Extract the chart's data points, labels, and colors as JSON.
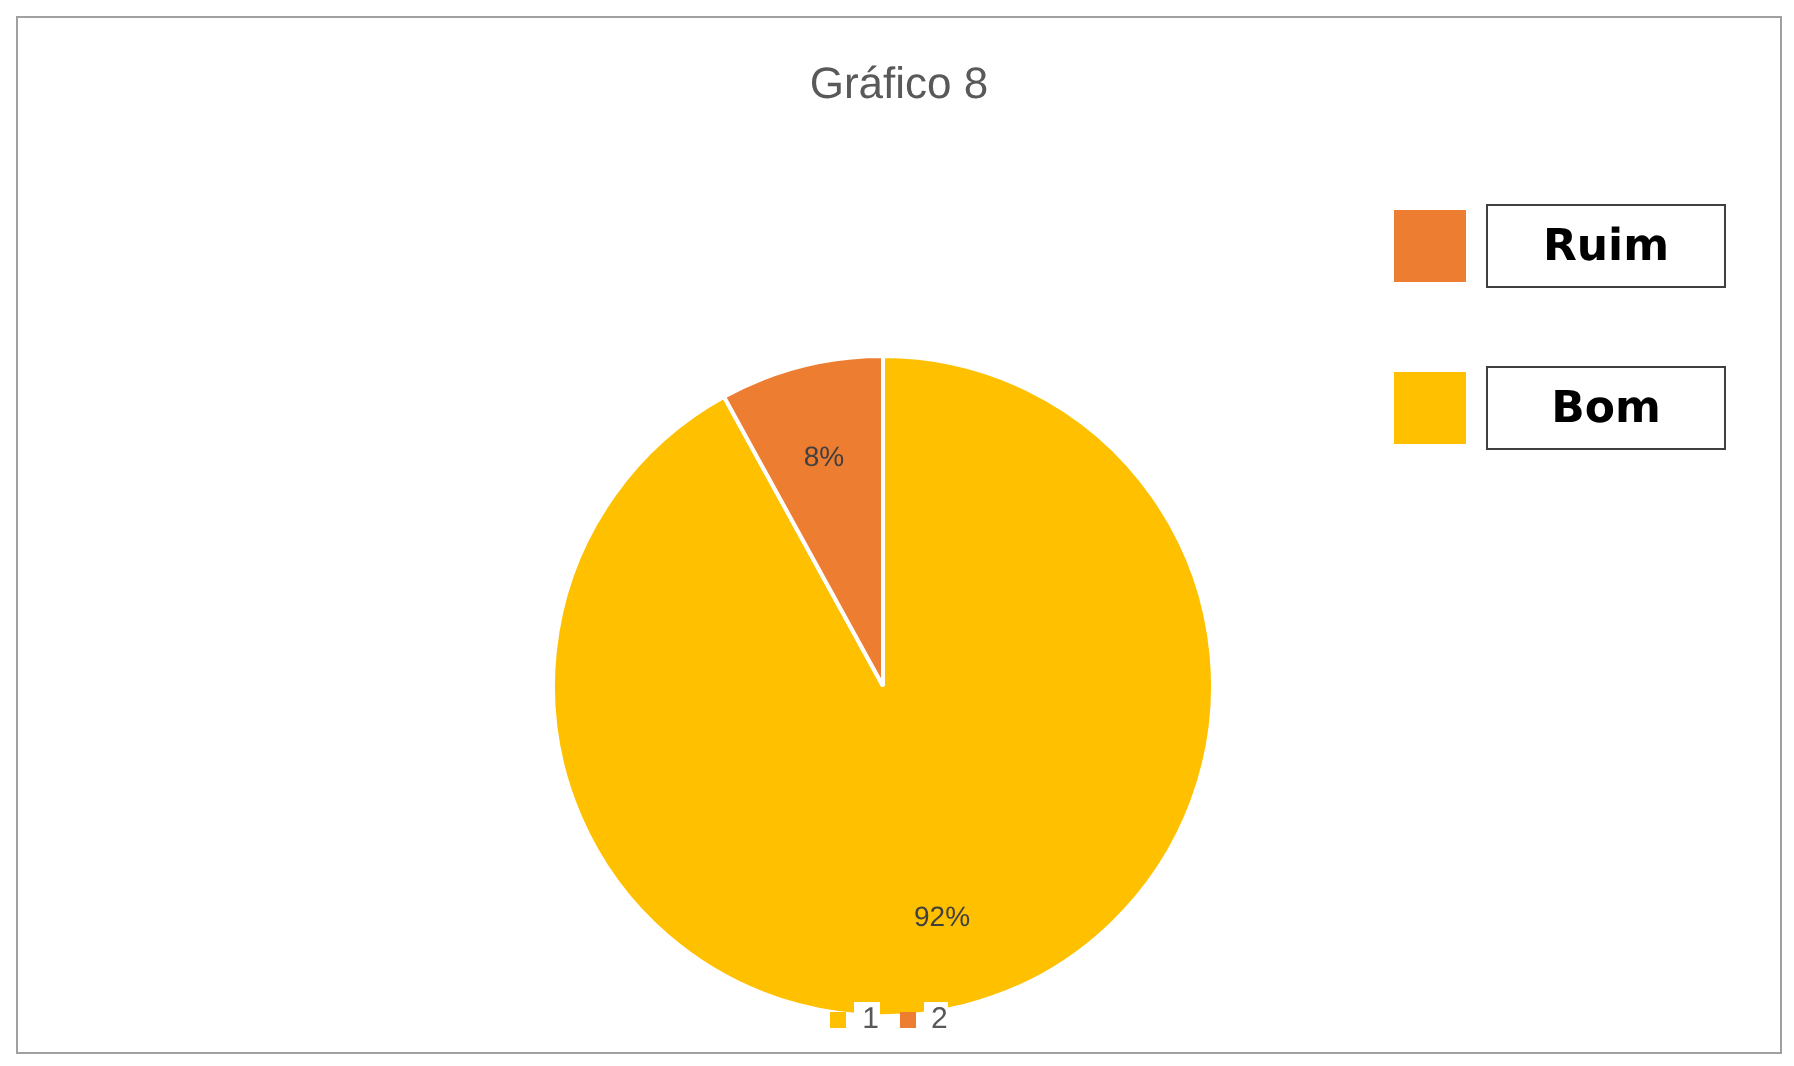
{
  "chart_data": {
    "type": "pie",
    "title": "Gráfico 8",
    "categories": [
      "1",
      "2"
    ],
    "values": [
      92,
      8
    ],
    "colors": [
      "#ffc000",
      "#ed7d31"
    ],
    "value_labels": [
      "92%",
      "8%"
    ],
    "legend": "bottom",
    "annotations": [
      "Ruim",
      "Bom"
    ]
  }
}
